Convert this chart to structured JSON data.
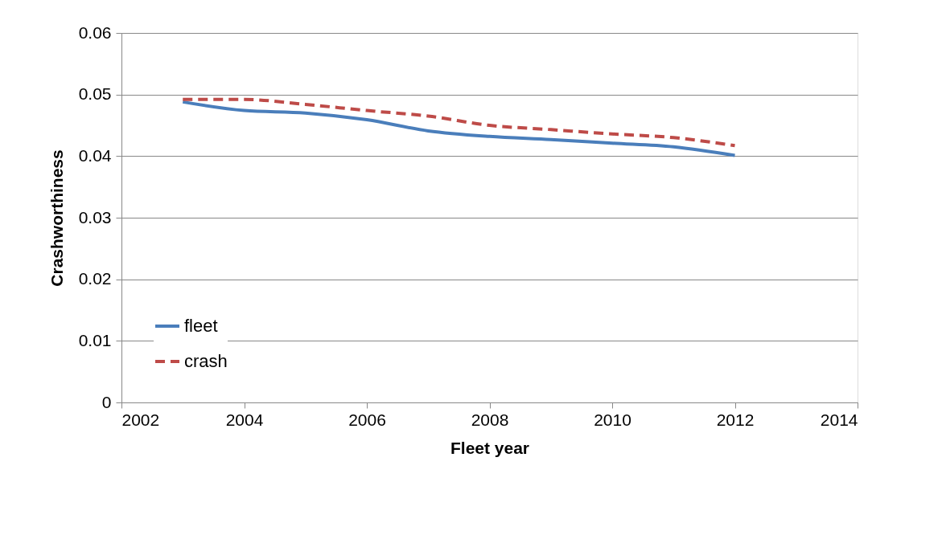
{
  "chart_data": {
    "type": "line",
    "xlabel": "Fleet year",
    "ylabel": "Crashworthiness",
    "x": [
      2003,
      2004,
      2005,
      2006,
      2007,
      2008,
      2009,
      2010,
      2011,
      2012
    ],
    "series": [
      {
        "name": "fleet",
        "color": "#4a7ebb",
        "line_style": "solid",
        "values": [
          0.0488,
          0.0474,
          0.047,
          0.0459,
          0.0441,
          0.0432,
          0.0427,
          0.0421,
          0.0415,
          0.0401
        ]
      },
      {
        "name": "crash",
        "color": "#be4b48",
        "line_style": "dashed",
        "values": [
          0.0492,
          0.0492,
          0.0484,
          0.0474,
          0.0465,
          0.045,
          0.0443,
          0.0436,
          0.043,
          0.0417
        ]
      }
    ],
    "xlim": [
      2002,
      2014
    ],
    "xticks": [
      2002,
      2004,
      2006,
      2008,
      2010,
      2012,
      2014
    ],
    "ylim": [
      0,
      0.06
    ],
    "yticks": [
      0,
      0.01,
      0.02,
      0.03,
      0.04,
      0.05,
      0.06
    ],
    "grid": "y",
    "legend": "bottom left",
    "marker": "none"
  }
}
